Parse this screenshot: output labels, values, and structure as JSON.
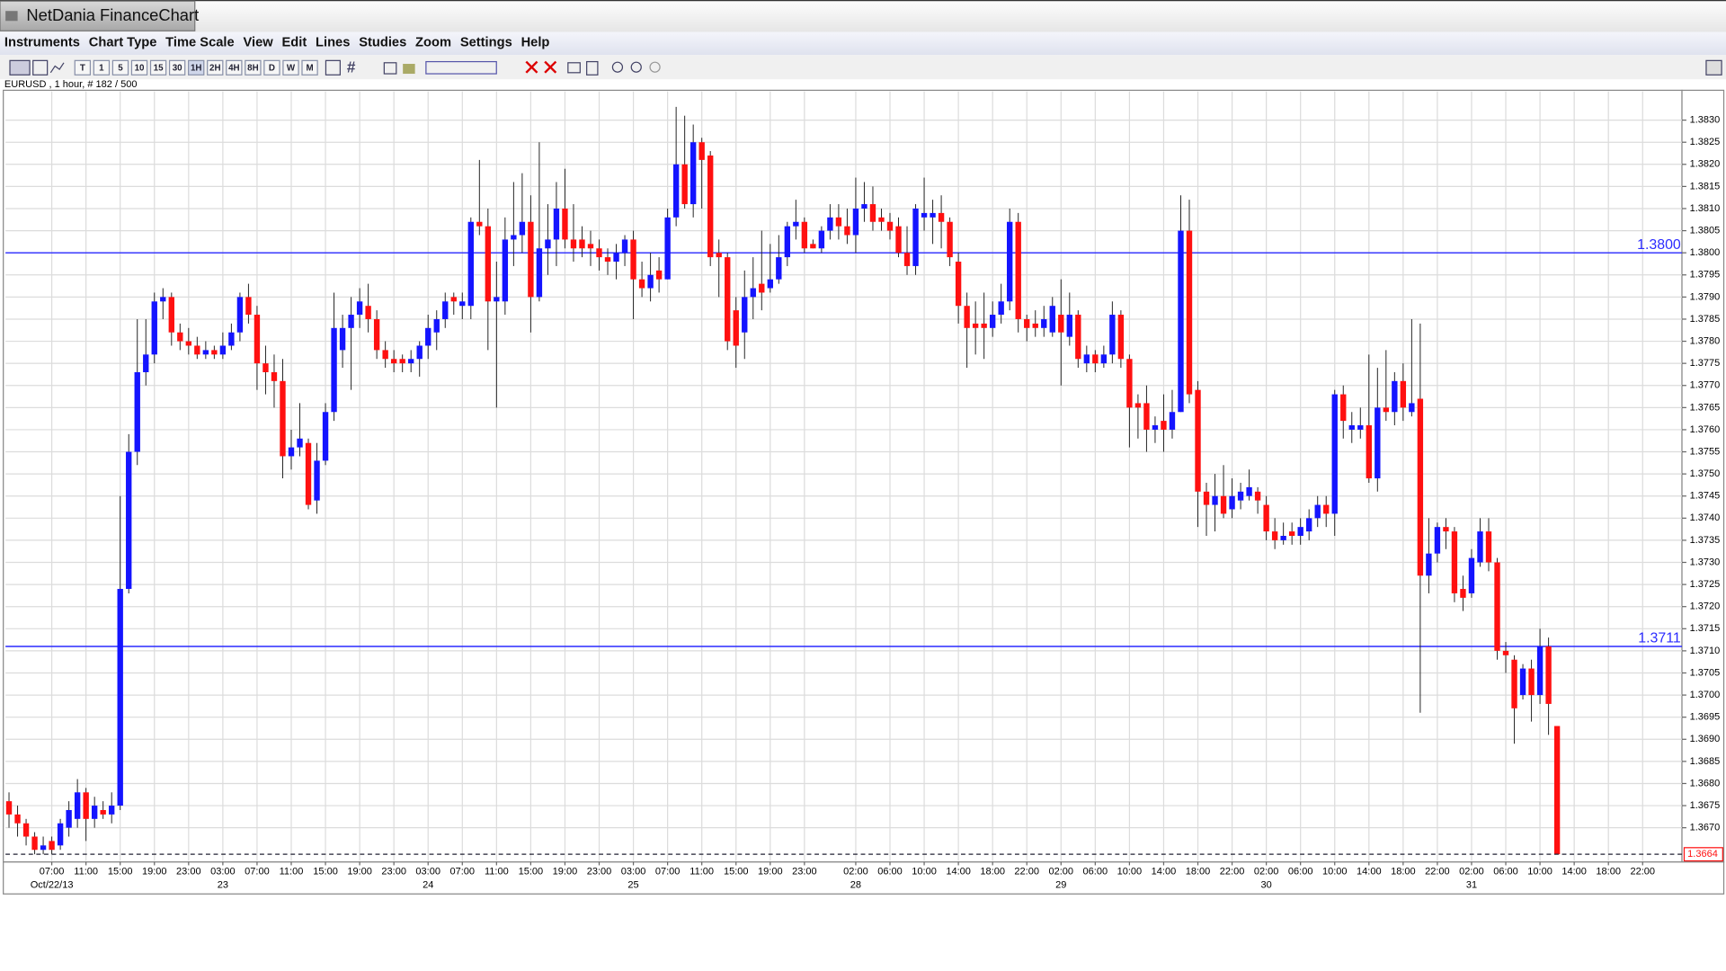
{
  "window": {
    "title": "NetDania FinanceChart",
    "menu": [
      "Instruments",
      "Chart Type",
      "Time Scale",
      "View",
      "Edit",
      "Lines",
      "Studies",
      "Zoom",
      "Settings",
      "Help"
    ],
    "toolbar": [
      "T",
      "1",
      "5",
      "10",
      "15",
      "30",
      "1H",
      "2H",
      "4H",
      "8H",
      "D",
      "W",
      "M"
    ],
    "instrument": "EURUSD , 1 hour, # 182 / 500"
  },
  "chart_data": {
    "type": "candlestick",
    "up_color": "#1414ff",
    "down_color": "#ff1010",
    "grid": true,
    "xlim": [
      -0.41,
      195.6
    ],
    "ylim": [
      1.36625,
      1.38365
    ],
    "yticks": [
      {
        "value": 1.367,
        "label": "1.3670"
      },
      1.3675,
      {
        "value": 1.368,
        "label": "1.3680"
      },
      1.3685,
      {
        "value": 1.369,
        "label": "1.3690"
      },
      1.3695,
      {
        "value": 1.37,
        "label": "1.3700"
      },
      1.3705,
      {
        "value": 1.371,
        "label": "1.3710"
      },
      1.3715,
      {
        "value": 1.372,
        "label": "1.3720"
      },
      1.3725,
      {
        "value": 1.373,
        "label": "1.3730"
      },
      1.3735,
      {
        "value": 1.374,
        "label": "1.3740"
      },
      1.3745,
      {
        "value": 1.375,
        "label": "1.3750"
      },
      1.3755,
      {
        "value": 1.376,
        "label": "1.3760"
      },
      1.3765,
      {
        "value": 1.377,
        "label": "1.3770"
      },
      1.3775,
      {
        "value": 1.378,
        "label": "1.3780"
      },
      1.3785,
      {
        "value": 1.379,
        "label": "1.3790"
      },
      1.3795,
      {
        "value": 1.38,
        "label": "1.3800"
      },
      1.3805,
      {
        "value": 1.381,
        "label": "1.3810"
      },
      1.3815,
      {
        "value": 1.382,
        "label": "1.3820"
      },
      1.3825,
      {
        "value": 1.383,
        "label": "1.3830"
      }
    ],
    "xticks": [
      {
        "value": 5,
        "label": "07:00"
      },
      {
        "value": 9,
        "label": "11:00"
      },
      {
        "value": 13,
        "label": "15:00"
      },
      {
        "value": 17,
        "label": "19:00"
      },
      {
        "value": 21,
        "label": "23:00"
      },
      {
        "value": 25,
        "label": "03:00"
      },
      {
        "value": 29,
        "label": "07:00"
      },
      {
        "value": 33,
        "label": "11:00"
      },
      {
        "value": 37,
        "label": "15:00"
      },
      {
        "value": 41,
        "label": "19:00"
      },
      {
        "value": 45,
        "label": "23:00"
      },
      {
        "value": 49,
        "label": "03:00"
      },
      {
        "value": 53,
        "label": "07:00"
      },
      {
        "value": 57,
        "label": "11:00"
      },
      {
        "value": 61,
        "label": "15:00"
      },
      {
        "value": 65,
        "label": "19:00"
      },
      {
        "value": 69,
        "label": "23:00"
      },
      {
        "value": 73,
        "label": "03:00"
      },
      {
        "value": 77,
        "label": "07:00"
      },
      {
        "value": 81,
        "label": "11:00"
      },
      {
        "value": 85,
        "label": "15:00"
      },
      {
        "value": 89,
        "label": "19:00"
      },
      {
        "value": 93,
        "label": "23:00"
      },
      {
        "value": 99,
        "label": "02:00"
      },
      {
        "value": 103,
        "label": "06:00"
      },
      {
        "value": 107,
        "label": "10:00"
      },
      {
        "value": 111,
        "label": "14:00"
      },
      {
        "value": 115,
        "label": "18:00"
      },
      {
        "value": 119,
        "label": "22:00"
      },
      {
        "value": 123,
        "label": "02:00"
      },
      {
        "value": 127,
        "label": "06:00"
      },
      {
        "value": 131,
        "label": "10:00"
      },
      {
        "value": 135,
        "label": "14:00"
      },
      {
        "value": 139,
        "label": "18:00"
      },
      {
        "value": 143,
        "label": "22:00"
      },
      {
        "value": 147,
        "label": "02:00"
      },
      {
        "value": 151,
        "label": "06:00"
      },
      {
        "value": 155,
        "label": "10:00"
      },
      {
        "value": 159,
        "label": "14:00"
      },
      {
        "value": 163,
        "label": "18:00"
      },
      {
        "value": 167,
        "label": "22:00"
      },
      {
        "value": 171,
        "label": "02:00"
      },
      {
        "value": 175,
        "label": "06:00"
      },
      {
        "value": 179,
        "label": "10:00"
      },
      {
        "value": 183,
        "label": "14:00"
      },
      {
        "value": 187,
        "label": "18:00"
      },
      {
        "value": 191,
        "label": "22:00"
      }
    ],
    "date_ticks": [
      {
        "value": 5,
        "label": "Oct/22/13"
      },
      {
        "value": 25,
        "label": "23"
      },
      {
        "value": 49,
        "label": "24"
      },
      {
        "value": 73,
        "label": "25"
      },
      {
        "value": 99,
        "label": "28"
      },
      {
        "value": 123,
        "label": "29"
      },
      {
        "value": 147,
        "label": "30"
      },
      {
        "value": 171,
        "label": "31"
      }
    ],
    "hlines": [
      {
        "value": 1.38,
        "label": "1.3800"
      },
      1.3711
    ],
    "last_price": 1.3664,
    "open": [
      1.3676,
      1.3673,
      1.3671,
      1.3668,
      1.3665,
      1.3667,
      1.3666,
      1.367,
      1.3672,
      1.3678,
      1.3672,
      1.3674,
      1.3673,
      1.3675,
      1.3724,
      1.3755,
      1.3773,
      1.3777,
      1.3789,
      1.379,
      1.3782,
      1.378,
      1.3779,
      1.3777,
      1.3778,
      1.3777,
      1.3779,
      1.3782,
      1.379,
      1.3786,
      1.3775,
      1.3773,
      1.3771,
      1.3754,
      1.3756,
      1.3757,
      1.3744,
      1.3753,
      1.3764,
      1.3778,
      1.3783,
      1.3786,
      1.3788,
      1.3785,
      1.3778,
      1.3776,
      1.3776,
      1.3775,
      1.3776,
      1.3779,
      1.3782,
      1.3785,
      1.379,
      1.3788,
      1.3788,
      1.3807,
      1.3806,
      1.3789,
      1.3789,
      1.3803,
      1.3804,
      1.3807,
      1.379,
      1.3801,
      1.3803,
      1.381,
      1.3803,
      1.3803,
      1.3802,
      1.3801,
      1.3799,
      1.3798,
      1.38,
      1.3803,
      1.3794,
      1.3792,
      1.3796,
      1.3794,
      1.3808,
      1.382,
      1.3811,
      1.3825,
      1.3822,
      1.38,
      1.3799,
      1.3787,
      1.3782,
      1.379,
      1.3793,
      1.3792,
      1.3794,
      1.3799,
      1.3806,
      1.3807,
      1.3802,
      1.3801,
      1.3805,
      1.3808,
      1.3806,
      1.3804,
      1.381,
      1.3811,
      1.3808,
      1.3807,
      1.3806,
      1.38,
      1.3797,
      1.3808,
      1.3808,
      1.3809,
      1.3807,
      1.3798,
      1.3788,
      1.3784,
      1.3784,
      1.3783,
      1.3786,
      1.3789,
      1.3807,
      1.3785,
      1.3784,
      1.3783,
      1.3782,
      1.3786,
      1.3781,
      1.3786,
      1.3775,
      1.3777,
      1.3775,
      1.3777,
      1.3786,
      1.3776,
      1.3766,
      1.3766,
      1.376,
      1.3762,
      1.376,
      1.3764,
      1.3805,
      1.3769,
      1.3746,
      1.3743,
      1.3745,
      1.3742,
      1.3744,
      1.3745,
      1.3746,
      1.3743,
      1.3737,
      1.3735,
      1.3737,
      1.3736,
      1.3737,
      1.374,
      1.3743,
      1.3741,
      1.3768,
      1.376,
      1.376,
      1.3761,
      1.3749,
      1.3765,
      1.3764,
      1.3771,
      1.3764,
      1.3767,
      1.3727,
      1.3732,
      1.3738,
      1.3737,
      1.3724,
      1.3723,
      1.373,
      1.3737,
      1.373,
      1.371,
      1.3708,
      1.37,
      1.3706,
      1.37,
      1.3711,
      1.3693
    ],
    "high": [
      1.3678,
      1.3675,
      1.3672,
      1.3669,
      1.3668,
      1.3668,
      1.3672,
      1.3676,
      1.3681,
      1.3679,
      1.3677,
      1.3676,
      1.3678,
      1.3745,
      1.3759,
      1.3785,
      1.3785,
      1.3791,
      1.3792,
      1.3791,
      1.3784,
      1.3783,
      1.3781,
      1.378,
      1.3779,
      1.3782,
      1.3784,
      1.3791,
      1.3793,
      1.3788,
      1.3779,
      1.3777,
      1.3776,
      1.376,
      1.3766,
      1.3758,
      1.3757,
      1.3766,
      1.3791,
      1.3786,
      1.379,
      1.3792,
      1.3793,
      1.3787,
      1.378,
      1.3778,
      1.3777,
      1.3778,
      1.378,
      1.3786,
      1.3787,
      1.3791,
      1.3791,
      1.3791,
      1.3808,
      1.3821,
      1.381,
      1.3798,
      1.3808,
      1.3816,
      1.3818,
      1.3813,
      1.3825,
      1.3811,
      1.3816,
      1.3819,
      1.3811,
      1.3806,
      1.3805,
      1.3803,
      1.3801,
      1.3802,
      1.3804,
      1.3805,
      1.3798,
      1.38,
      1.3799,
      1.381,
      1.3833,
      1.3831,
      1.3829,
      1.3826,
      1.3823,
      1.3803,
      1.38,
      1.379,
      1.3796,
      1.3799,
      1.3805,
      1.3802,
      1.3804,
      1.3807,
      1.3812,
      1.3808,
      1.3803,
      1.3806,
      1.3811,
      1.3811,
      1.381,
      1.3817,
      1.3816,
      1.3815,
      1.381,
      1.3809,
      1.3808,
      1.3806,
      1.3811,
      1.3817,
      1.3812,
      1.3813,
      1.3808,
      1.38,
      1.3791,
      1.3789,
      1.3791,
      1.3789,
      1.3793,
      1.381,
      1.3809,
      1.3786,
      1.3787,
      1.3788,
      1.379,
      1.3794,
      1.3791,
      1.3787,
      1.3779,
      1.3778,
      1.3779,
      1.3789,
      1.3787,
      1.3777,
      1.3768,
      1.377,
      1.3763,
      1.3768,
      1.3769,
      1.3813,
      1.3812,
      1.3771,
      1.3748,
      1.375,
      1.3752,
      1.3749,
      1.3748,
      1.3751,
      1.3747,
      1.3745,
      1.374,
      1.3739,
      1.3739,
      1.374,
      1.3742,
      1.3745,
      1.3745,
      1.3769,
      1.377,
      1.3764,
      1.3765,
      1.3777,
      1.3774,
      1.3778,
      1.3773,
      1.3775,
      1.3785,
      1.3784,
      1.374,
      1.3739,
      1.374,
      1.3738,
      1.3727,
      1.3733,
      1.374,
      1.374,
      1.3731,
      1.3712,
      1.3709,
      1.3707,
      1.3708,
      1.3715,
      1.3713,
      1.3693
    ],
    "low": [
      1.367,
      1.3668,
      1.3666,
      1.3664,
      1.3664,
      1.3664,
      1.3665,
      1.3668,
      1.367,
      1.3667,
      1.367,
      1.3672,
      1.3671,
      1.3674,
      1.3723,
      1.3752,
      1.377,
      1.3775,
      1.3785,
      1.3779,
      1.3778,
      1.3777,
      1.3776,
      1.3776,
      1.3776,
      1.3776,
      1.3778,
      1.378,
      1.3784,
      1.3769,
      1.3768,
      1.3765,
      1.3749,
      1.3751,
      1.3754,
      1.3742,
      1.3741,
      1.3752,
      1.3762,
      1.3774,
      1.3769,
      1.3783,
      1.3782,
      1.3776,
      1.3774,
      1.3773,
      1.3773,
      1.3773,
      1.3772,
      1.3776,
      1.3778,
      1.3783,
      1.3786,
      1.3785,
      1.3785,
      1.3804,
      1.3778,
      1.3765,
      1.3786,
      1.3797,
      1.38,
      1.3782,
      1.3789,
      1.3795,
      1.3797,
      1.3801,
      1.3798,
      1.3799,
      1.3797,
      1.3796,
      1.3795,
      1.3794,
      1.3797,
      1.3785,
      1.379,
      1.3789,
      1.3791,
      1.3794,
      1.3806,
      1.381,
      1.3808,
      1.381,
      1.3797,
      1.379,
      1.3778,
      1.3774,
      1.3776,
      1.3785,
      1.3787,
      1.3791,
      1.3793,
      1.3797,
      1.3803,
      1.38,
      1.3801,
      1.38,
      1.3803,
      1.3803,
      1.3802,
      1.38,
      1.3807,
      1.3805,
      1.3805,
      1.3803,
      1.3799,
      1.3795,
      1.3795,
      1.3805,
      1.3802,
      1.3801,
      1.3797,
      1.3784,
      1.3774,
      1.3777,
      1.3776,
      1.3781,
      1.3784,
      1.3787,
      1.3782,
      1.378,
      1.3781,
      1.3781,
      1.3781,
      1.377,
      1.3779,
      1.3774,
      1.3773,
      1.3773,
      1.3774,
      1.3775,
      1.3774,
      1.3756,
      1.3758,
      1.3755,
      1.3757,
      1.3755,
      1.3758,
      1.3764,
      1.3766,
      1.3738,
      1.3736,
      1.3737,
      1.374,
      1.374,
      1.3742,
      1.3744,
      1.3741,
      1.3735,
      1.3733,
      1.3734,
      1.3734,
      1.3734,
      1.3735,
      1.3738,
      1.3738,
      1.3736,
      1.3758,
      1.3757,
      1.3758,
      1.3748,
      1.3746,
      1.3762,
      1.3761,
      1.3762,
      1.3763,
      1.3696,
      1.3723,
      1.373,
      1.3733,
      1.3721,
      1.3719,
      1.3722,
      1.3729,
      1.3728,
      1.3708,
      1.3705,
      1.3689,
      1.3699,
      1.3694,
      1.3698,
      1.3691,
      1.3664
    ],
    "close": [
      1.3673,
      1.3671,
      1.3668,
      1.3665,
      1.3666,
      1.3665,
      1.3671,
      1.3674,
      1.3678,
      1.3672,
      1.3675,
      1.3673,
      1.3675,
      1.3724,
      1.3755,
      1.3773,
      1.3777,
      1.3789,
      1.379,
      1.3782,
      1.378,
      1.3779,
      1.3777,
      1.3778,
      1.3777,
      1.3779,
      1.3782,
      1.379,
      1.3786,
      1.3775,
      1.3773,
      1.3771,
      1.3754,
      1.3756,
      1.3758,
      1.3743,
      1.3753,
      1.3764,
      1.3783,
      1.3783,
      1.3786,
      1.3789,
      1.3785,
      1.3778,
      1.3776,
      1.3775,
      1.3775,
      1.3776,
      1.3779,
      1.3783,
      1.3785,
      1.3789,
      1.3789,
      1.3789,
      1.3807,
      1.3806,
      1.3789,
      1.379,
      1.3803,
      1.3804,
      1.3807,
      1.379,
      1.3801,
      1.3803,
      1.381,
      1.3803,
      1.3801,
      1.3801,
      1.3801,
      1.3799,
      1.3798,
      1.38,
      1.3803,
      1.3794,
      1.3792,
      1.3795,
      1.3794,
      1.3808,
      1.382,
      1.3811,
      1.3825,
      1.3821,
      1.3799,
      1.3799,
      1.378,
      1.3779,
      1.379,
      1.3792,
      1.3791,
      1.3794,
      1.3799,
      1.3806,
      1.3807,
      1.3801,
      1.3801,
      1.3805,
      1.3808,
      1.3806,
      1.3804,
      1.381,
      1.3811,
      1.3807,
      1.3807,
      1.3805,
      1.38,
      1.3797,
      1.381,
      1.3809,
      1.3809,
      1.3807,
      1.3799,
      1.3788,
      1.3783,
      1.3783,
      1.3783,
      1.3786,
      1.3789,
      1.3807,
      1.3785,
      1.3783,
      1.3783,
      1.3785,
      1.3788,
      1.3782,
      1.3786,
      1.3776,
      1.3777,
      1.3775,
      1.3777,
      1.3786,
      1.3776,
      1.3765,
      1.3765,
      1.376,
      1.3761,
      1.376,
      1.3764,
      1.3805,
      1.3768,
      1.3746,
      1.3743,
      1.3745,
      1.3741,
      1.3745,
      1.3746,
      1.3747,
      1.3744,
      1.3737,
      1.3735,
      1.3736,
      1.3736,
      1.3738,
      1.374,
      1.3743,
      1.3741,
      1.3768,
      1.3762,
      1.3761,
      1.3761,
      1.3749,
      1.3765,
      1.3764,
      1.3771,
      1.3765,
      1.3766,
      1.3727,
      1.3732,
      1.3738,
      1.3737,
      1.3723,
      1.3722,
      1.3731,
      1.3737,
      1.373,
      1.371,
      1.3709,
      1.3697,
      1.3706,
      1.37,
      1.3711,
      1.3698,
      1.3664
    ]
  }
}
